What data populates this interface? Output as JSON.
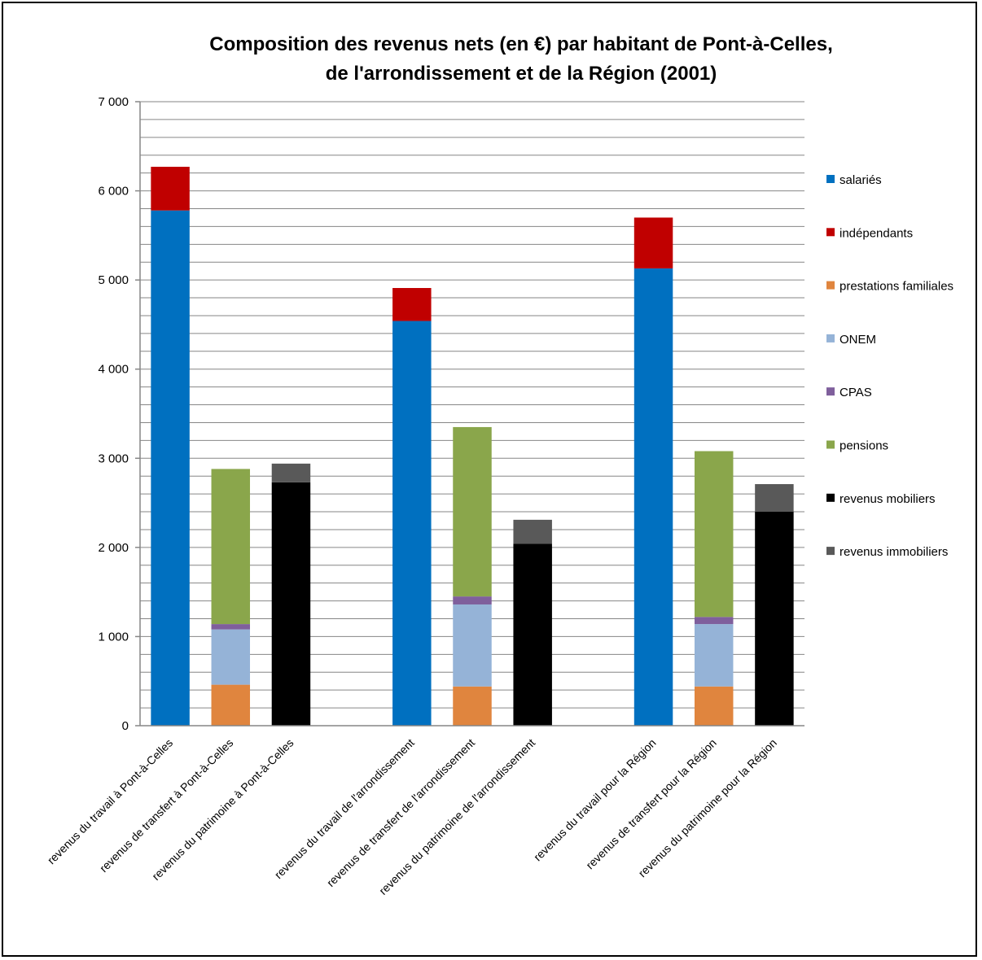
{
  "chart_data": {
    "type": "bar",
    "stacked": true,
    "title": "Composition  des revenus nets (en €) par habitant de Pont-à-Celles,",
    "subtitle": "de l'arrondissement  et de la Région (2001)",
    "ylim": [
      0,
      7000
    ],
    "yticks": [
      0,
      1000,
      2000,
      3000,
      4000,
      5000,
      6000,
      7000
    ],
    "ytick_labels": [
      "0",
      "1 000",
      "2 000",
      "3 000",
      "4 000",
      "5 000",
      "6 000",
      "7 000"
    ],
    "grid": true,
    "legend_position": "right",
    "categories": [
      "revenus du travail à Pont-à-Celles",
      "revenus de transfert à Pont-à-Celles",
      "revenus du patrimoine à Pont-à-Celles",
      "",
      "revenus du travail de l'arrondissement",
      "revenus de transfert de l'arrondissement",
      "revenus du patrimoine de l'arrondissement",
      "",
      "revenus du travail pour la Région",
      "revenus de transfert pour la Région",
      "revenus du patrimoine pour la Région"
    ],
    "series": [
      {
        "name": "salariés",
        "color": "#0070C0",
        "values": [
          5780,
          0,
          0,
          0,
          4540,
          0,
          0,
          0,
          5130,
          0,
          0
        ]
      },
      {
        "name": "indépendants",
        "color": "#C00000",
        "values": [
          490,
          0,
          0,
          0,
          370,
          0,
          0,
          0,
          570,
          0,
          0
        ]
      },
      {
        "name": "prestations familiales",
        "color": "#E0853E",
        "values": [
          0,
          460,
          0,
          0,
          0,
          440,
          0,
          0,
          0,
          440,
          0
        ]
      },
      {
        "name": "ONEM",
        "color": "#95B3D7",
        "values": [
          0,
          620,
          0,
          0,
          0,
          920,
          0,
          0,
          0,
          700,
          0
        ]
      },
      {
        "name": "CPAS",
        "color": "#7F5F9C",
        "values": [
          0,
          60,
          0,
          0,
          0,
          90,
          0,
          0,
          0,
          80,
          0
        ]
      },
      {
        "name": "pensions",
        "color": "#8AA64B",
        "values": [
          0,
          1740,
          0,
          0,
          0,
          1900,
          0,
          0,
          0,
          1860,
          0
        ]
      },
      {
        "name": "revenus mobiliers",
        "color": "#000000",
        "values": [
          0,
          0,
          2730,
          0,
          0,
          0,
          2040,
          0,
          0,
          0,
          2400
        ]
      },
      {
        "name": "revenus immobiliers",
        "color": "#595959",
        "values": [
          0,
          0,
          210,
          0,
          0,
          0,
          270,
          0,
          0,
          0,
          310
        ]
      }
    ]
  }
}
